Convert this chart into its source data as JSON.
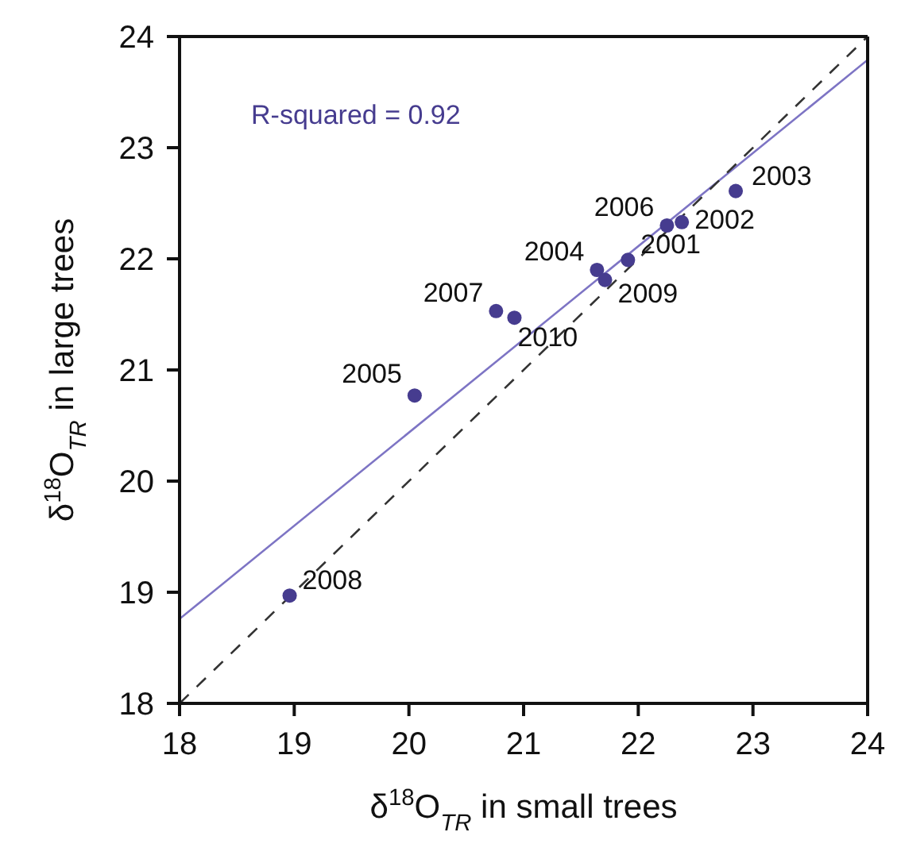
{
  "chart_data": {
    "type": "scatter",
    "xlabel": "δ$^{18}$O$_{TR}$ in small trees",
    "ylabel": "δ$^{18}$O$_{TR}$ in large trees",
    "xlim": [
      18,
      24
    ],
    "ylim": [
      18,
      24
    ],
    "xticks": [
      18,
      19,
      20,
      21,
      22,
      23,
      24
    ],
    "yticks": [
      18,
      19,
      20,
      21,
      22,
      23,
      24
    ],
    "series": [
      {
        "color": "#463c8f",
        "marker": "circle",
        "x": [
          21.91,
          22.38,
          22.85,
          21.64,
          20.05,
          22.25,
          20.76,
          18.96,
          21.71,
          20.92
        ],
        "values": [
          21.99,
          22.33,
          22.61,
          21.9,
          20.77,
          22.3,
          21.53,
          18.97,
          21.81,
          21.47
        ]
      },
      {
        "type": "line",
        "color": "#7d74c4",
        "line_style": "solid",
        "marker": "none",
        "x": [
          18,
          24
        ],
        "values": [
          18.76,
          23.79
        ]
      },
      {
        "type": "line",
        "color": "#333333",
        "line_style": "dashed",
        "marker": "none",
        "x": [
          18,
          24
        ],
        "values": [
          18,
          24
        ]
      }
    ],
    "annotations": [
      "R-squared = 0.92",
      {
        "text": "2001",
        "x": 21.91,
        "y": 21.99
      },
      {
        "text": "2002",
        "x": 22.38,
        "y": 22.33
      },
      {
        "text": "2003",
        "x": 22.85,
        "y": 22.61
      },
      {
        "text": "2004",
        "x": 21.64,
        "y": 21.9
      },
      {
        "text": "2005",
        "x": 20.05,
        "y": 20.77
      },
      {
        "text": "2006",
        "x": 22.25,
        "y": 22.3
      },
      {
        "text": "2007",
        "x": 20.76,
        "y": 21.53
      },
      {
        "text": "2008",
        "x": 18.96,
        "y": 18.97
      },
      {
        "text": "2009",
        "x": 21.71,
        "y": 21.81
      },
      {
        "text": "2010",
        "x": 20.92,
        "y": 21.47
      }
    ]
  }
}
